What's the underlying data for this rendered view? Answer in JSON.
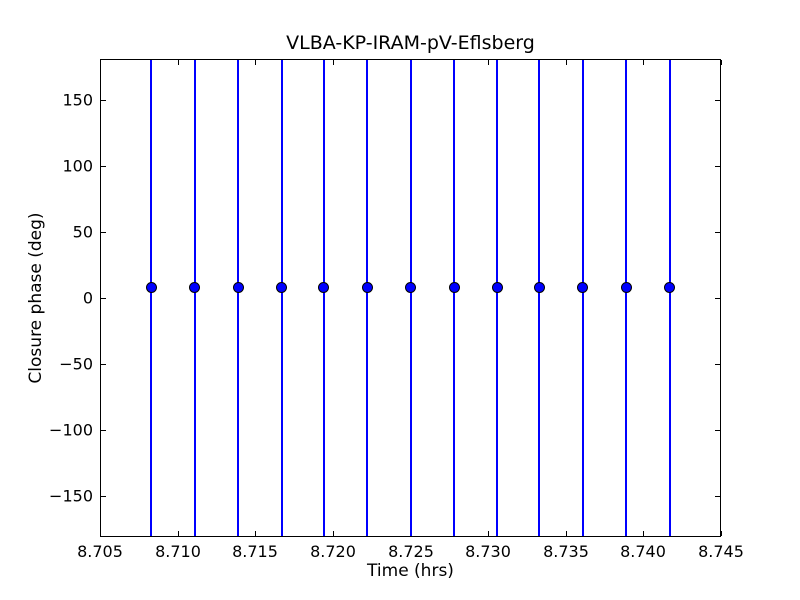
{
  "chart_data": {
    "type": "scatter",
    "title": "VLBA-KP-IRAM-pV-Eflsberg",
    "xlabel": "Time (hrs)",
    "ylabel": "Closure phase (deg)",
    "xlim": [
      8.705,
      8.745
    ],
    "ylim": [
      -181,
      181
    ],
    "xticks": [
      8.705,
      8.71,
      8.715,
      8.72,
      8.725,
      8.73,
      8.735,
      8.74,
      8.745
    ],
    "xtick_labels": [
      "8.705",
      "8.710",
      "8.715",
      "8.720",
      "8.725",
      "8.730",
      "8.735",
      "8.740",
      "8.745"
    ],
    "yticks": [
      150,
      100,
      50,
      0,
      -50,
      -100,
      -150
    ],
    "ytick_labels": [
      "150",
      "100",
      "50",
      "0",
      "−50",
      "−100",
      "−150"
    ],
    "grid": false,
    "legend": "none",
    "ticks_direction": "in, mirrored on top and right axes",
    "colors": {
      "data": "#0000ff",
      "marker_edge": "#000000",
      "axes": "#000000",
      "background": "#ffffff"
    },
    "series": [
      {
        "name": "closure phase vs time",
        "marker": "filled circle",
        "color": "#0000ff",
        "x": [
          8.7083,
          8.7111,
          8.7139,
          8.7167,
          8.7194,
          8.7222,
          8.725,
          8.7278,
          8.7306,
          8.7333,
          8.7361,
          8.7389,
          8.7417
        ],
        "y": [
          8,
          8,
          8,
          8,
          8,
          8,
          8,
          8,
          8,
          8,
          8,
          8,
          8
        ],
        "error_bars": "vertical blue lines spanning the full y-range (clipped at axis limits)"
      }
    ]
  }
}
